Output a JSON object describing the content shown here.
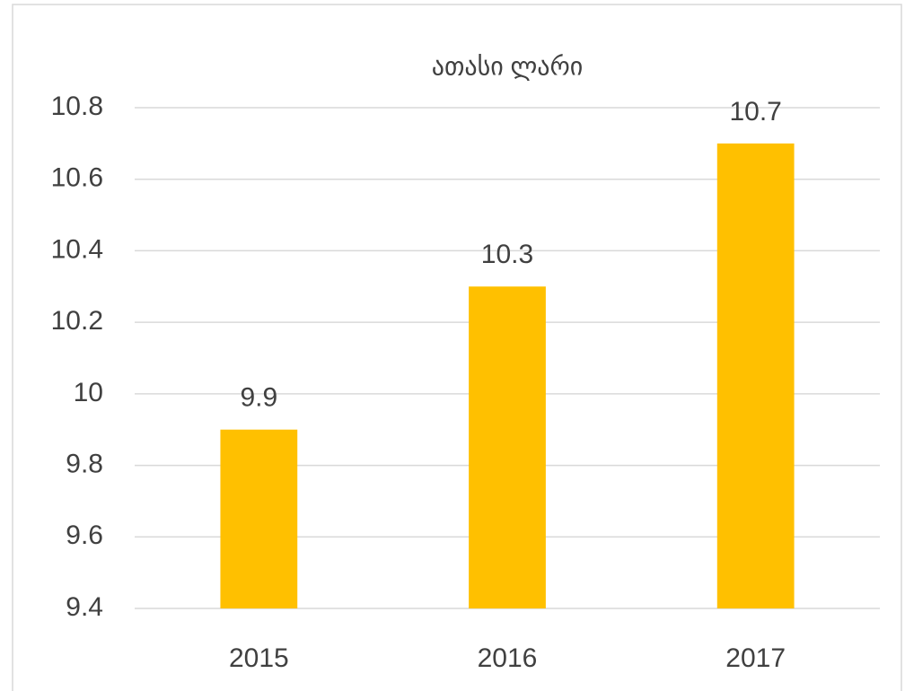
{
  "chart_data": {
    "type": "bar",
    "title": "ათასი ლარი",
    "categories": [
      "2015",
      "2016",
      "2017"
    ],
    "values": [
      9.9,
      10.3,
      10.7
    ],
    "color": "#ffc000",
    "ylim": [
      9.4,
      10.8
    ],
    "yticks": [
      9.4,
      9.6,
      9.8,
      10,
      10.2,
      10.4,
      10.6,
      10.8
    ],
    "grid": true
  }
}
